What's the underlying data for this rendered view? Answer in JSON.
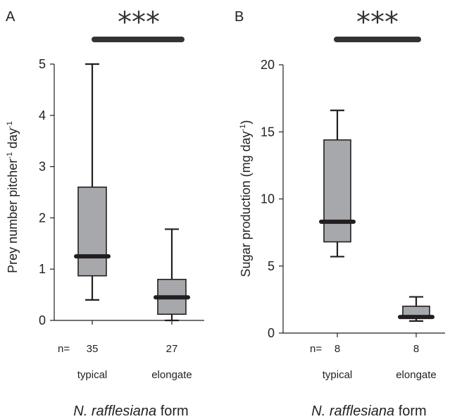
{
  "chart_data": [
    {
      "type": "box",
      "panel": "A",
      "ylabel": {
        "base": "Prey number pitcher",
        "sup1": "-1",
        "mid": " day",
        "sup2": "-1"
      },
      "xlabel": {
        "italic": "N. rafflesiana",
        "rest": " form"
      },
      "ylim": [
        0,
        5
      ],
      "yticks": [
        0,
        1,
        2,
        3,
        4,
        5
      ],
      "n_label": "n=",
      "categories": [
        "typical",
        "elongate"
      ],
      "n": [
        "35",
        "27"
      ],
      "boxes": [
        {
          "name": "typical",
          "min": 0.4,
          "q1": 0.87,
          "median": 1.25,
          "q3": 2.6,
          "max": 5.0
        },
        {
          "name": "elongate",
          "min": 0.0,
          "q1": 0.12,
          "median": 0.45,
          "q3": 0.8,
          "max": 1.78
        }
      ],
      "significance": "***",
      "colors": {
        "box_fill": "#a6a8ab",
        "stroke": "#231f20"
      }
    },
    {
      "type": "box",
      "panel": "B",
      "ylabel": {
        "base": "Sugar production (mg day",
        "sup1": "-1",
        "mid": ")",
        "sup2": ""
      },
      "xlabel": {
        "italic": "N. rafflesiana",
        "rest": " form"
      },
      "ylim": [
        0,
        20
      ],
      "yticks": [
        0,
        5,
        10,
        15,
        20
      ],
      "n_label": "n=",
      "categories": [
        "typical",
        "elongate"
      ],
      "n": [
        "8",
        "8"
      ],
      "boxes": [
        {
          "name": "typical",
          "min": 5.7,
          "q1": 6.8,
          "median": 8.3,
          "q3": 14.4,
          "max": 16.6
        },
        {
          "name": "elongate",
          "min": 0.9,
          "q1": 1.1,
          "median": 1.2,
          "q3": 2.0,
          "max": 2.7
        }
      ],
      "significance": "***",
      "colors": {
        "box_fill": "#a6a8ab",
        "stroke": "#231f20"
      }
    }
  ]
}
